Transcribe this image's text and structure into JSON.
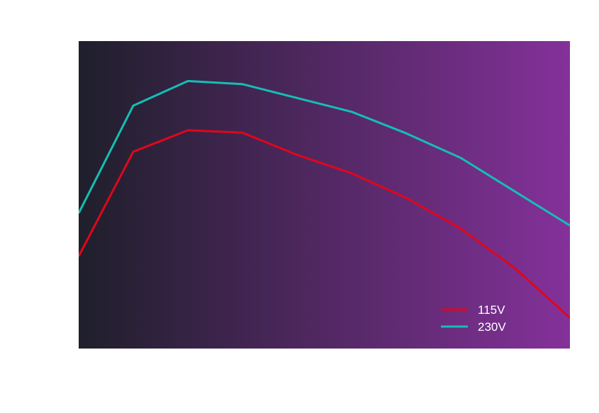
{
  "chart_data": {
    "type": "line",
    "title": "",
    "xlabel": "",
    "ylabel": "",
    "x": [
      0,
      1,
      2,
      3,
      4,
      5,
      6,
      7,
      8,
      9
    ],
    "xlim": [
      0,
      9
    ],
    "ylim": [
      0,
      100
    ],
    "grid": false,
    "legend_position": "bottom-right",
    "background_gradient": [
      "#1f1f2b",
      "#84319a"
    ],
    "series": [
      {
        "name": "115V",
        "color": "#e0061c",
        "values": [
          30,
          64,
          71,
          70.2,
          63,
          57,
          49,
          39,
          26,
          10
        ]
      },
      {
        "name": "230V",
        "color": "#13bfb4",
        "values": [
          44,
          79,
          87,
          86,
          81.5,
          77,
          70,
          62,
          51,
          40
        ]
      }
    ]
  }
}
